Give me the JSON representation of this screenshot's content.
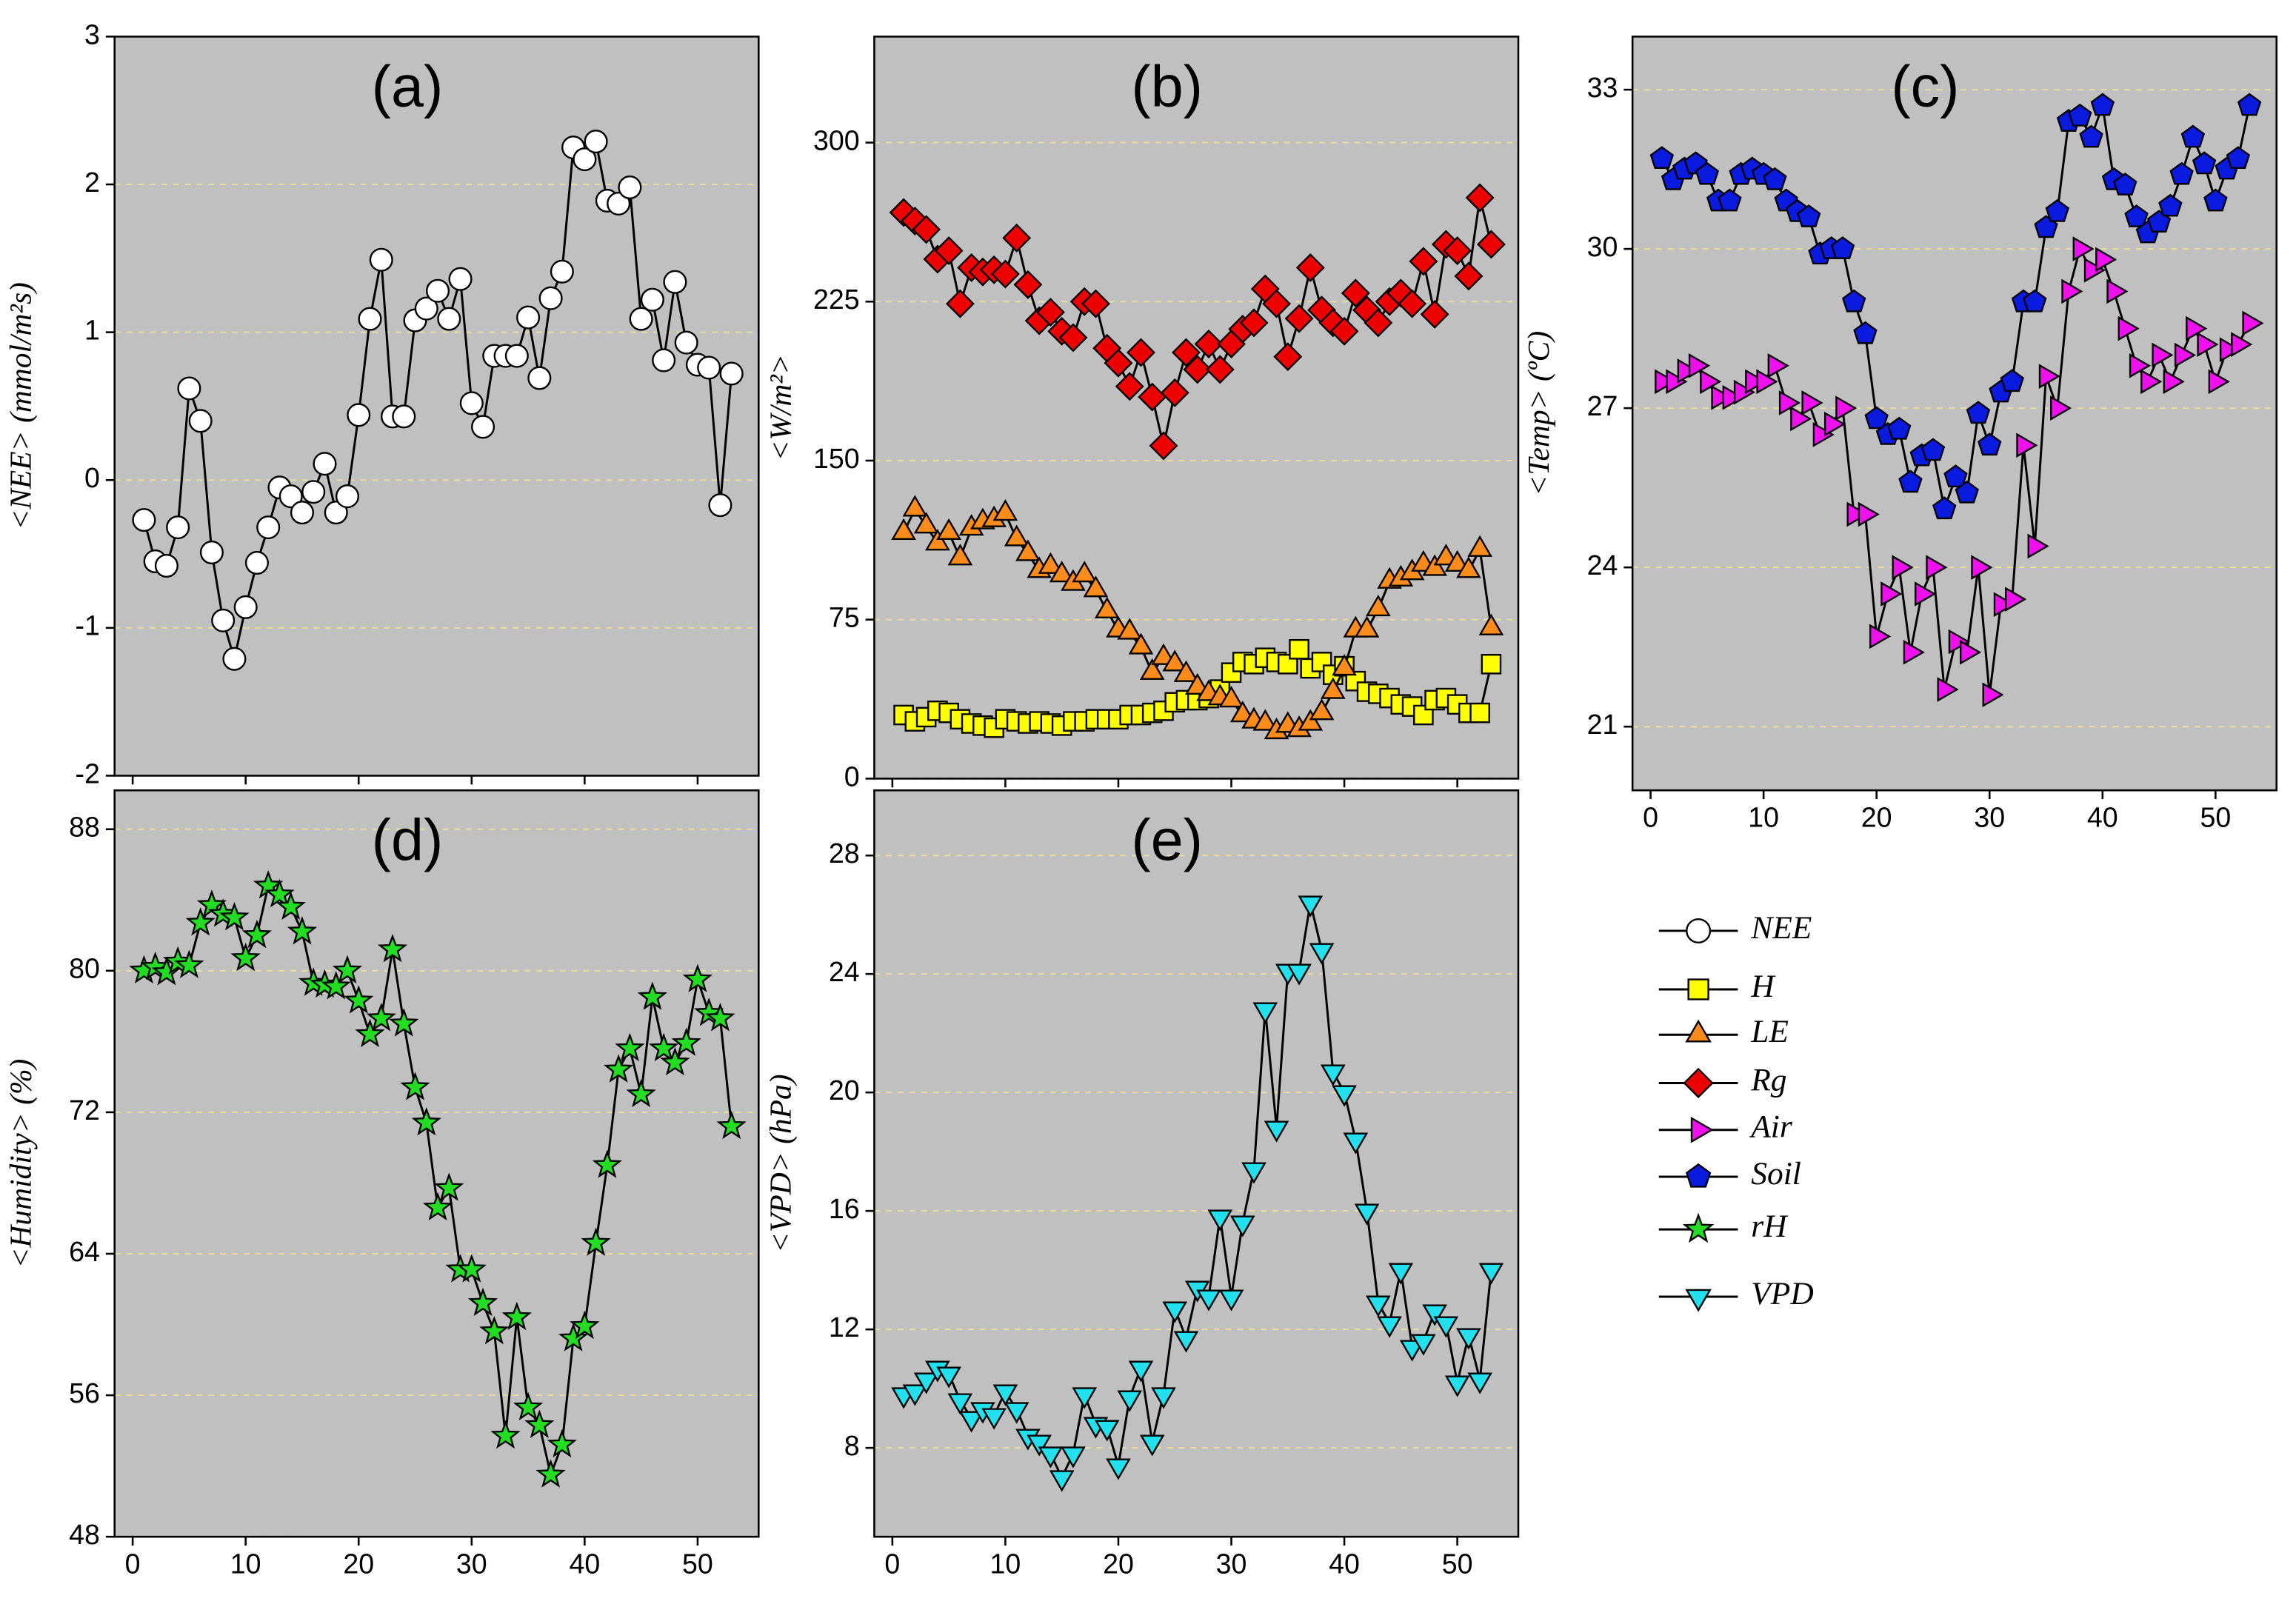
{
  "chart_data": [
    {
      "type": "line",
      "title": "(a)",
      "y_label": "<NEE> (mmol/m²s)",
      "xlim": [
        -1.6,
        55.4
      ],
      "xticks": [
        0,
        10,
        20,
        30,
        40,
        50
      ],
      "xtick_labels": false,
      "ylim": [
        -2,
        3
      ],
      "yticks": [
        -2,
        -1,
        0,
        1,
        2,
        3
      ],
      "grid": true,
      "x": [
        1,
        2,
        3,
        4,
        5,
        6,
        7,
        8,
        9,
        10,
        11,
        12,
        13,
        14,
        15,
        16,
        17,
        18,
        19,
        20,
        21,
        22,
        23,
        24,
        25,
        26,
        27,
        28,
        29,
        30,
        31,
        32,
        33,
        34,
        35,
        36,
        37,
        38,
        39,
        40,
        41,
        42,
        43,
        44,
        45,
        46,
        47,
        48,
        49,
        50,
        51,
        52,
        53
      ],
      "series": [
        {
          "name": "NEE",
          "color": "#ffffff",
          "marker": "circle",
          "values": [
            -0.27,
            -0.55,
            -0.58,
            -0.32,
            0.62,
            0.4,
            -0.49,
            -0.95,
            -1.21,
            -0.86,
            -0.56,
            -0.32,
            -0.05,
            -0.11,
            -0.22,
            -0.08,
            0.11,
            -0.22,
            -0.11,
            0.44,
            1.09,
            1.49,
            0.43,
            0.43,
            1.08,
            1.16,
            1.28,
            1.09,
            1.36,
            0.52,
            0.36,
            0.84,
            0.84,
            0.84,
            1.1,
            0.69,
            1.23,
            1.41,
            2.25,
            2.17,
            2.29,
            1.89,
            1.87,
            1.98,
            1.09,
            1.22,
            0.81,
            1.34,
            0.93,
            0.78,
            0.76,
            -0.17,
            0.72
          ]
        }
      ]
    },
    {
      "type": "line",
      "title": "(b)",
      "y_label": "<W/m²>",
      "xlim": [
        -1.6,
        55.4
      ],
      "xticks": [
        0,
        10,
        20,
        30,
        40,
        50
      ],
      "xtick_labels": false,
      "ylim": [
        0,
        350
      ],
      "yticks": [
        0,
        75,
        150,
        225,
        300
      ],
      "grid": true,
      "x": [
        1,
        2,
        3,
        4,
        5,
        6,
        7,
        8,
        9,
        10,
        11,
        12,
        13,
        14,
        15,
        16,
        17,
        18,
        19,
        20,
        21,
        22,
        23,
        24,
        25,
        26,
        27,
        28,
        29,
        30,
        31,
        32,
        33,
        34,
        35,
        36,
        37,
        38,
        39,
        40,
        41,
        42,
        43,
        44,
        45,
        46,
        47,
        48,
        49,
        50,
        51,
        52,
        53
      ],
      "series": [
        {
          "name": "H",
          "color": "#ffff00",
          "marker": "square",
          "values": [
            30,
            27,
            29,
            32,
            31,
            28,
            26,
            25,
            24,
            28,
            27,
            26,
            27,
            26,
            25,
            27,
            27,
            28,
            28,
            28,
            30,
            30,
            31,
            32,
            36,
            37,
            37,
            38,
            42,
            50,
            55,
            54,
            57,
            55,
            54,
            61,
            52,
            55,
            49,
            53,
            46,
            41,
            40,
            38,
            35,
            34,
            30,
            37,
            38,
            35,
            31,
            31,
            54
          ]
        },
        {
          "name": "LE",
          "color": "#ff8c1a",
          "marker": "triangle-up",
          "values": [
            116,
            127,
            119,
            111,
            116,
            104,
            118,
            121,
            122,
            125,
            113,
            106,
            98,
            100,
            96,
            92,
            96,
            89,
            79,
            70,
            69,
            62,
            50,
            57,
            54,
            49,
            43,
            40,
            38,
            37,
            30,
            27,
            26,
            22,
            25,
            23,
            26,
            31,
            41,
            52,
            70,
            70,
            80,
            93,
            94,
            97,
            101,
            99,
            104,
            101,
            98,
            108,
            71
          ]
        },
        {
          "name": "Rg",
          "color": "#ee0000",
          "marker": "diamond",
          "values": [
            267,
            263,
            259,
            245,
            249,
            224,
            241,
            239,
            240,
            238,
            255,
            233,
            216,
            220,
            211,
            208,
            225,
            224,
            203,
            196,
            185,
            201,
            180,
            157,
            182,
            201,
            193,
            205,
            193,
            205,
            212,
            215,
            231,
            224,
            199,
            217,
            241,
            221,
            215,
            211,
            229,
            221,
            215,
            225,
            229,
            224,
            244,
            219,
            252,
            249,
            237,
            274,
            252
          ]
        }
      ]
    },
    {
      "type": "line",
      "title": "(c)",
      "y_label": "<Temp> (ºC)",
      "xlim": [
        -1.6,
        55.4
      ],
      "xticks": [
        0,
        10,
        20,
        30,
        40,
        50
      ],
      "xtick_labels": true,
      "ylim": [
        19.8,
        34
      ],
      "yticks": [
        21,
        24,
        27,
        30,
        33
      ],
      "grid": true,
      "x": [
        1,
        2,
        3,
        4,
        5,
        6,
        7,
        8,
        9,
        10,
        11,
        12,
        13,
        14,
        15,
        16,
        17,
        18,
        19,
        20,
        21,
        22,
        23,
        24,
        25,
        26,
        27,
        28,
        29,
        30,
        31,
        32,
        33,
        34,
        35,
        36,
        37,
        38,
        39,
        40,
        41,
        42,
        43,
        44,
        45,
        46,
        47,
        48,
        49,
        50,
        51,
        52,
        53
      ],
      "series": [
        {
          "name": "Air",
          "color": "#ee11ee",
          "marker": "triangle-right",
          "values": [
            27.5,
            27.5,
            27.7,
            27.8,
            27.5,
            27.2,
            27.2,
            27.3,
            27.5,
            27.5,
            27.8,
            27.1,
            26.8,
            27.1,
            26.5,
            26.7,
            27.0,
            25.0,
            25.0,
            22.7,
            23.5,
            24.0,
            22.4,
            23.5,
            24.0,
            21.7,
            22.6,
            22.4,
            24.0,
            21.6,
            23.3,
            23.4,
            26.3,
            24.4,
            27.6,
            27.0,
            29.2,
            30.0,
            29.6,
            29.8,
            29.2,
            28.5,
            27.8,
            27.5,
            28.0,
            27.5,
            28.0,
            28.5,
            28.2,
            27.5,
            28.1,
            28.2,
            28.6
          ]
        },
        {
          "name": "Soil",
          "color": "#0a1adf",
          "marker": "pentagon",
          "values": [
            31.7,
            31.3,
            31.5,
            31.6,
            31.4,
            30.9,
            30.9,
            31.4,
            31.5,
            31.4,
            31.3,
            30.9,
            30.7,
            30.6,
            29.9,
            30.0,
            30.0,
            29.0,
            28.4,
            26.8,
            26.5,
            26.6,
            25.6,
            26.1,
            26.2,
            25.1,
            25.7,
            25.4,
            26.9,
            26.3,
            27.3,
            27.5,
            29.0,
            29.0,
            30.4,
            30.7,
            32.4,
            32.5,
            32.1,
            32.7,
            31.3,
            31.2,
            30.6,
            30.3,
            30.5,
            30.8,
            31.4,
            32.1,
            31.6,
            30.9,
            31.5,
            31.7,
            32.7
          ]
        }
      ]
    },
    {
      "type": "line",
      "title": "(d)",
      "y_label": "<Humidity> (%)",
      "xlim": [
        -1.6,
        55.4
      ],
      "xticks": [
        0,
        10,
        20,
        30,
        40,
        50
      ],
      "xtick_labels": true,
      "ylim": [
        48,
        90.2
      ],
      "yticks": [
        48,
        56,
        64,
        72,
        80,
        88
      ],
      "grid": true,
      "x": [
        1,
        2,
        3,
        4,
        5,
        6,
        7,
        8,
        9,
        10,
        11,
        12,
        13,
        14,
        15,
        16,
        17,
        18,
        19,
        20,
        21,
        22,
        23,
        24,
        25,
        26,
        27,
        28,
        29,
        30,
        31,
        32,
        33,
        34,
        35,
        36,
        37,
        38,
        39,
        40,
        41,
        42,
        43,
        44,
        45,
        46,
        47,
        48,
        49,
        50,
        51,
        52,
        53
      ],
      "series": [
        {
          "name": "rH",
          "color": "#22dd22",
          "marker": "star",
          "values": [
            80,
            80.2,
            79.9,
            80.5,
            80.3,
            82.7,
            83.7,
            83.2,
            83.0,
            80.7,
            82.0,
            84.8,
            84.3,
            83.6,
            82.2,
            79.3,
            79.2,
            79.1,
            80.0,
            78.3,
            76.4,
            77.3,
            81.2,
            77.0,
            73.4,
            71.4,
            66.6,
            67.7,
            63.1,
            63.1,
            61.2,
            59.6,
            53.7,
            60.4,
            55.3,
            54.3,
            51.5,
            53.2,
            59.2,
            59.9,
            64.6,
            69.0,
            74.4,
            75.6,
            73.0,
            78.5,
            75.6,
            74.8,
            75.9,
            79.5,
            77.6,
            77.3,
            71.2
          ]
        }
      ]
    },
    {
      "type": "line",
      "title": "(e)",
      "y_label": "<VPD> (hPa)",
      "xlim": [
        -1.6,
        55.4
      ],
      "xticks": [
        0,
        10,
        20,
        30,
        40,
        50
      ],
      "xtick_labels": true,
      "ylim": [
        5,
        30.2
      ],
      "yticks": [
        8,
        12,
        16,
        20,
        24,
        28
      ],
      "grid": true,
      "x": [
        1,
        2,
        3,
        4,
        5,
        6,
        7,
        8,
        9,
        10,
        11,
        12,
        13,
        14,
        15,
        16,
        17,
        18,
        19,
        20,
        21,
        22,
        23,
        24,
        25,
        26,
        27,
        28,
        29,
        30,
        31,
        32,
        33,
        34,
        35,
        36,
        37,
        38,
        39,
        40,
        41,
        42,
        43,
        44,
        45,
        46,
        47,
        48,
        49,
        50,
        51,
        52,
        53
      ],
      "series": [
        {
          "name": "VPD",
          "color": "#22e0ee",
          "marker": "triangle-down",
          "values": [
            9.8,
            9.9,
            10.3,
            10.7,
            10.5,
            9.6,
            9.0,
            9.3,
            9.1,
            9.9,
            9.3,
            8.4,
            8.2,
            7.8,
            7.0,
            7.8,
            9.8,
            8.8,
            8.7,
            7.4,
            9.7,
            10.7,
            8.2,
            9.8,
            12.7,
            11.7,
            13.4,
            13.1,
            15.8,
            13.1,
            15.6,
            17.4,
            22.8,
            18.8,
            24.1,
            24.1,
            26.4,
            24.8,
            20.7,
            20.0,
            18.4,
            16.0,
            12.9,
            12.2,
            14.0,
            11.4,
            11.6,
            12.6,
            12.2,
            10.2,
            11.8,
            10.3,
            14.0
          ]
        }
      ]
    }
  ]
}
